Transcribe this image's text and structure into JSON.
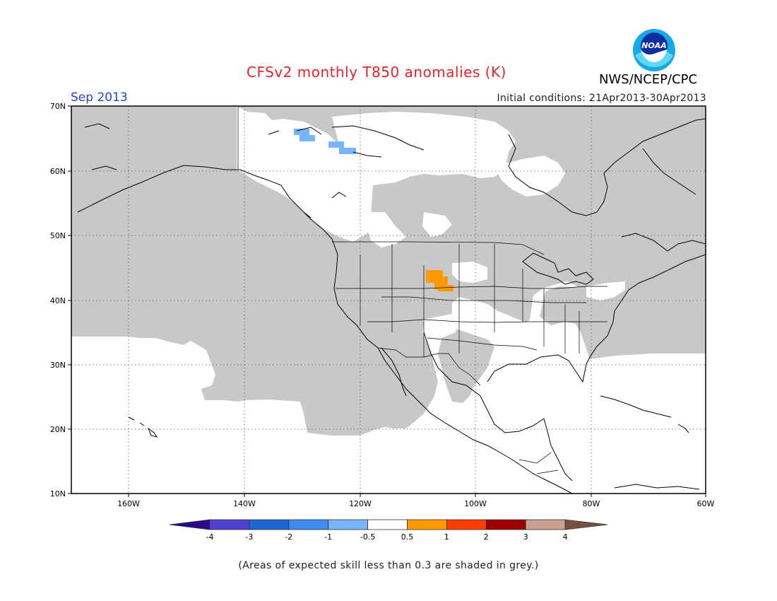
{
  "header": {
    "title": "CFSv2 monthly T850 anomalies (K)",
    "agency": "NWS/NCEP/CPC",
    "logo_text": "NOAA",
    "valid_month": "Sep 2013",
    "initial_conditions": "Initial conditions: 21Apr2013-30Apr2013"
  },
  "map": {
    "lat_labels": [
      "70N",
      "60N",
      "50N",
      "40N",
      "30N",
      "20N",
      "10N"
    ],
    "lon_labels": [
      "160W",
      "140W",
      "120W",
      "100W",
      "80W",
      "60W"
    ],
    "shading_color": "#c8c8c8",
    "warm_anomaly_color": "#ff9900",
    "cold_anomaly_color": "#78b4ff"
  },
  "colorbar": {
    "labels": [
      "-4",
      "-3",
      "-2",
      "-1",
      "-0.5",
      "0.5",
      "1",
      "2",
      "3",
      "4"
    ],
    "colors": [
      "#2a0a8a",
      "#5040d0",
      "#1e64d2",
      "#3c8cf0",
      "#78b4ff",
      "#ffffff",
      "#ff9900",
      "#ff3c00",
      "#a00000",
      "#c8a090",
      "#785040"
    ]
  },
  "footer": {
    "note": "(Areas of expected skill less than 0.3 are shaded in grey.)"
  }
}
